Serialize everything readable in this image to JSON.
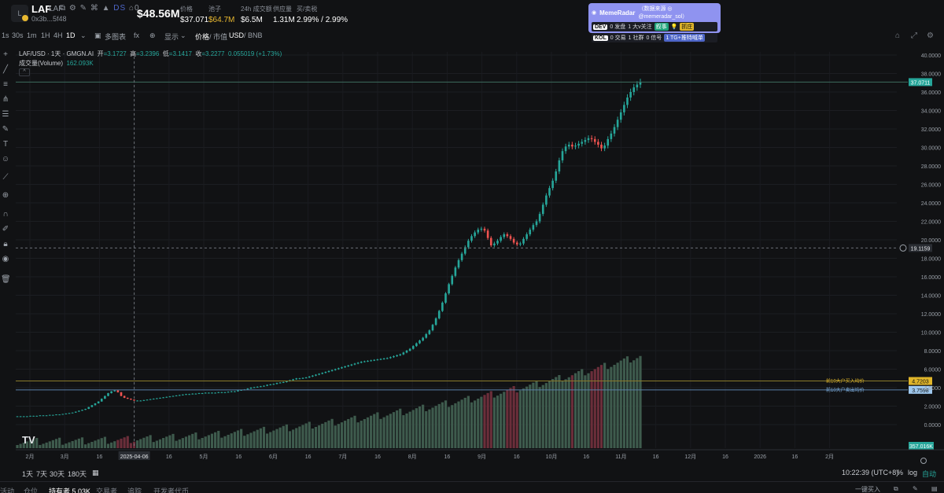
{
  "header": {
    "logo_letter": "L",
    "symbol": "LAF",
    "symbol_sub": "LAF",
    "social_icons": "⧉ ⚙ ✎ ⌘ ▲",
    "ds_label": "DS",
    "holders_icon_count": "0",
    "address": "0x3b...5f48",
    "market_cap": "$48.56M",
    "stats": [
      {
        "label": "价格",
        "value": "$37.071",
        "gold": false
      },
      {
        "label": "池子",
        "value": "$64.7M",
        "gold": true
      },
      {
        "label": "24h 成交额",
        "value": "$6.5M",
        "gold": false
      },
      {
        "label": "供应量",
        "value": "1.31M",
        "gold": false
      },
      {
        "label": "买/卖税",
        "value": "2.99% / 2.99%",
        "gold": false
      }
    ]
  },
  "meme_radar": {
    "title": "MemeRadar",
    "source": "（数据来源 ◎ @memeradar_sol）",
    "dev_tag": "DEV",
    "dev_text": "0 发盘",
    "dev_big": "1 大v关注",
    "dev_badge": "叙事",
    "dev_badge2": "抓庄",
    "kol_tag": "KOL",
    "kol_text": "0 交易",
    "kol_comm": "1 社群",
    "kol_signal": "0 信号",
    "kol_tg": "1 TG+推特喊单"
  },
  "toolbar": {
    "intervals": [
      "1s",
      "30s",
      "1m",
      "1H",
      "4H",
      "1D"
    ],
    "active_interval": "1D",
    "multi_chart": "多图表",
    "indicators_icon": "fx",
    "display": "显示",
    "price_mcap": "价格",
    "price_mcap2": "/ 市值",
    "currency": "USD",
    "currency2": "/ BNB"
  },
  "legend": {
    "ohlc_title": "LAF/USD · 1天 · GMGN.AI",
    "open_lab": "开",
    "open": "=3.1727",
    "high_lab": "高",
    "high": "=3.2396",
    "low_lab": "低",
    "low": "=3.1417",
    "close_lab": "收",
    "close": "=3.2277",
    "change": "0.055019 (+1.73%)",
    "volume_lab": "成交量(Volume)",
    "volume": "162.093K",
    "collapse": "^"
  },
  "price_axis": {
    "ticks": [
      "40.0000",
      "38.0000",
      "36.0000",
      "34.0000",
      "32.0000",
      "30.0000",
      "28.0000",
      "26.0000",
      "24.0000",
      "22.0000",
      "20.0000",
      "18.0000",
      "16.0000",
      "14.0000",
      "12.0000",
      "10.0000",
      "8.0000",
      "6.0000",
      "4.0000",
      "2.0000",
      "0.0000"
    ],
    "last_price": "37.0711",
    "crosshair_price": "19.1159",
    "buy_avg": "4.7203",
    "sell_avg": "3.7598",
    "volume_tag": "357.016K",
    "buy_avg_label": "前10大户买入均价",
    "sell_avg_label": "前10大户卖出均价"
  },
  "time_axis": {
    "labels": [
      "2月",
      "3月",
      "16",
      "2025-04-06",
      "16",
      "5月",
      "16",
      "6月",
      "16",
      "7月",
      "16",
      "8月",
      "16",
      "9月",
      "16",
      "10月",
      "16",
      "11月",
      "16",
      "12月",
      "16",
      "2026",
      "16",
      "2月"
    ]
  },
  "chart_data": {
    "type": "candlestick",
    "title": "LAF/USD · 1天 · GMGN.AI",
    "ylim": [
      0,
      41
    ],
    "x_start": "2025-01-28",
    "x_end": "2025-10-23",
    "close_series": [
      0.9,
      0.9,
      0.9,
      0.9,
      0.95,
      0.95,
      0.95,
      1.0,
      1.0,
      1.0,
      1.05,
      1.05,
      1.1,
      1.1,
      1.15,
      1.2,
      1.25,
      1.3,
      1.4,
      1.5,
      1.6,
      1.7,
      1.9,
      2.1,
      2.3,
      2.5,
      2.8,
      3.1,
      3.4,
      3.6,
      3.7,
      3.5,
      3.1,
      2.9,
      2.8,
      2.7,
      2.6,
      2.6,
      2.6,
      2.65,
      2.7,
      2.75,
      2.8,
      2.85,
      2.9,
      2.95,
      3.0,
      3.05,
      3.1,
      3.15,
      3.2,
      3.25,
      3.3,
      3.3,
      3.35,
      3.35,
      3.4,
      3.4,
      3.45,
      3.45,
      3.45,
      3.45,
      3.5,
      3.5,
      3.5,
      3.55,
      3.6,
      3.6,
      3.7,
      3.75,
      3.8,
      3.9,
      4.0,
      4.05,
      4.1,
      4.15,
      4.2,
      4.3,
      4.35,
      4.4,
      4.5,
      4.55,
      4.6,
      4.7,
      4.8,
      4.9,
      5.0,
      5.0,
      5.05,
      5.1,
      5.2,
      5.3,
      5.4,
      5.5,
      5.6,
      5.7,
      5.8,
      5.9,
      6.0,
      6.1,
      6.2,
      6.3,
      6.4,
      6.5,
      6.6,
      6.7,
      6.8,
      6.85,
      6.9,
      6.95,
      7.0,
      7.05,
      7.1,
      7.15,
      7.2,
      7.3,
      7.4,
      7.5,
      7.6,
      7.8,
      8.0,
      8.2,
      8.5,
      8.8,
      9.1,
      9.4,
      9.8,
      10.2,
      10.8,
      11.5,
      12.3,
      13.2,
      14.2,
      15.2,
      16.1,
      17.0,
      17.8,
      18.5,
      19.2,
      19.9,
      20.4,
      20.8,
      21.1,
      21.2,
      21.0,
      20.2,
      19.4,
      19.6,
      19.9,
      20.3,
      20.6,
      20.4,
      20.1,
      19.7,
      19.5,
      19.6,
      20.1,
      20.6,
      21.1,
      21.6,
      22.0,
      22.8,
      23.8,
      24.8,
      25.6,
      26.4,
      27.4,
      28.6,
      29.6,
      30.1,
      30.3,
      30.1,
      30.2,
      30.4,
      30.6,
      30.8,
      31.0,
      30.9,
      30.6,
      30.3,
      29.9,
      30.2,
      30.9,
      31.5,
      32.2,
      33.0,
      33.8,
      34.6,
      35.4,
      36.0,
      36.5,
      36.8,
      37.07
    ],
    "buy_avg": 4.7203,
    "sell_avg": 3.7598,
    "last_price": 37.0711
  },
  "bottom": {
    "ranges": [
      "1天",
      "7天",
      "30天",
      "180天"
    ],
    "clock": "10:22:39 (UTC+8)",
    "pct": "%",
    "log": "log",
    "auto": "自动"
  },
  "tabs": {
    "items": [
      "活动",
      "仓位",
      "持有者 5.03K",
      "交易者",
      "追踪",
      "开发者代币"
    ],
    "active_index": 2,
    "right_label": "一键买入"
  },
  "colors": {
    "up": "#26a69a",
    "down": "#ef5350",
    "vol_up": "#3e5b4d",
    "vol_down": "#6b2e3a",
    "bg": "#111214"
  }
}
